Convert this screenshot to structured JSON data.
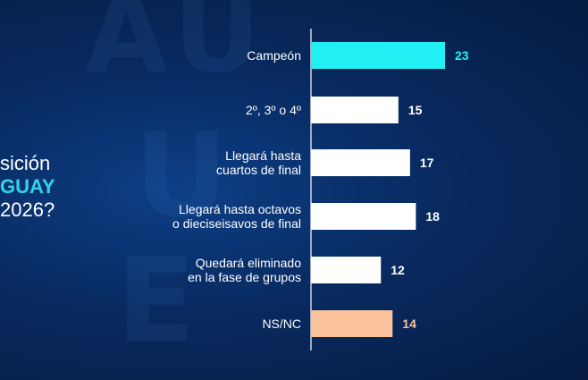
{
  "question": {
    "line1": "sición",
    "line2": "GUAY",
    "line3": "2026?"
  },
  "chart_data": {
    "type": "bar",
    "orientation": "horizontal",
    "categories": [
      [
        "Campeón"
      ],
      [
        "2º, 3º o 4º"
      ],
      [
        "Llegará hasta",
        "cuartos de final"
      ],
      [
        "Llegará hasta octavos",
        "o dieciseisavos de final"
      ],
      [
        "Quedará eliminado",
        "en la fase de grupos"
      ],
      [
        "NS/NC"
      ]
    ],
    "values": [
      23,
      15,
      17,
      18,
      12,
      14
    ],
    "colors": [
      "#22f0f4",
      "#ffffff",
      "#ffffff",
      "#ffffff",
      "#ffffff",
      "#f9c29a"
    ],
    "label_colors": [
      "#22f0f4",
      "#ffffff",
      "#ffffff",
      "#ffffff",
      "#ffffff",
      "#f9c29a"
    ],
    "xlim": [
      0,
      23
    ]
  }
}
